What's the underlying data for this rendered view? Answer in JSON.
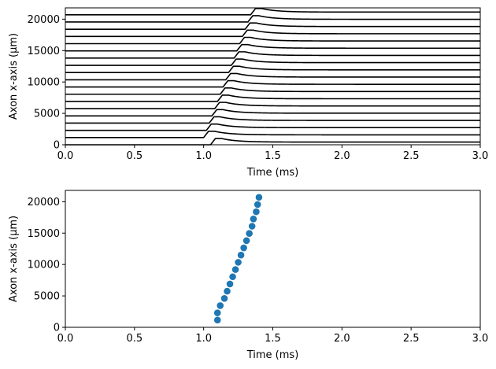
{
  "chart_data": [
    {
      "type": "line",
      "xlabel": "Time (ms)",
      "ylabel": "Axon x-axis (µm)",
      "xlim": [
        0,
        3
      ],
      "ylim": [
        0,
        21800
      ],
      "xticks": [
        0,
        0.5,
        1,
        1.5,
        2,
        2.5,
        3
      ],
      "xtick_labels": [
        "0.0",
        "0.5",
        "1.0",
        "1.5",
        "2.0",
        "2.5",
        "3.0"
      ],
      "yticks": [
        0,
        5000,
        10000,
        15000,
        20000
      ],
      "ytick_labels": [
        "0",
        "5000",
        "10000",
        "15000",
        "20000"
      ],
      "line_color": "#000000",
      "trace_offsets": [
        0,
        1150,
        2300,
        3450,
        4600,
        5750,
        6900,
        8050,
        9200,
        10350,
        11500,
        12650,
        13800,
        14950,
        16100,
        17250,
        18400,
        19550,
        20700
      ],
      "spike_onset_times": [
        1.05,
        1.0,
        1.02,
        1.04,
        1.06,
        1.08,
        1.1,
        1.12,
        1.14,
        1.16,
        1.18,
        1.2,
        1.22,
        1.24,
        1.26,
        1.28,
        1.3,
        1.32,
        1.34
      ],
      "grid": false
    },
    {
      "type": "scatter",
      "xlabel": "Time (ms)",
      "ylabel": "Axon x-axis (µm)",
      "xlim": [
        0,
        3
      ],
      "ylim": [
        0,
        21800
      ],
      "xticks": [
        0,
        0.5,
        1,
        1.5,
        2,
        2.5,
        3
      ],
      "xtick_labels": [
        "0.0",
        "0.5",
        "1.0",
        "1.5",
        "2.0",
        "2.5",
        "3.0"
      ],
      "yticks": [
        0,
        5000,
        10000,
        15000,
        20000
      ],
      "ytick_labels": [
        "0",
        "5000",
        "10000",
        "15000",
        "20000"
      ],
      "marker_color": "#1f77b4",
      "points": [
        {
          "x": 1.1,
          "y": 1150
        },
        {
          "x": 1.1,
          "y": 2300
        },
        {
          "x": 1.12,
          "y": 3450
        },
        {
          "x": 1.15,
          "y": 4600
        },
        {
          "x": 1.17,
          "y": 5750
        },
        {
          "x": 1.19,
          "y": 6900
        },
        {
          "x": 1.21,
          "y": 8050
        },
        {
          "x": 1.23,
          "y": 9200
        },
        {
          "x": 1.25,
          "y": 10350
        },
        {
          "x": 1.27,
          "y": 11500
        },
        {
          "x": 1.29,
          "y": 12650
        },
        {
          "x": 1.31,
          "y": 13800
        },
        {
          "x": 1.33,
          "y": 14950
        },
        {
          "x": 1.35,
          "y": 16100
        },
        {
          "x": 1.36,
          "y": 17250
        },
        {
          "x": 1.38,
          "y": 18400
        },
        {
          "x": 1.39,
          "y": 19550
        },
        {
          "x": 1.4,
          "y": 20700
        }
      ],
      "grid": false
    }
  ]
}
